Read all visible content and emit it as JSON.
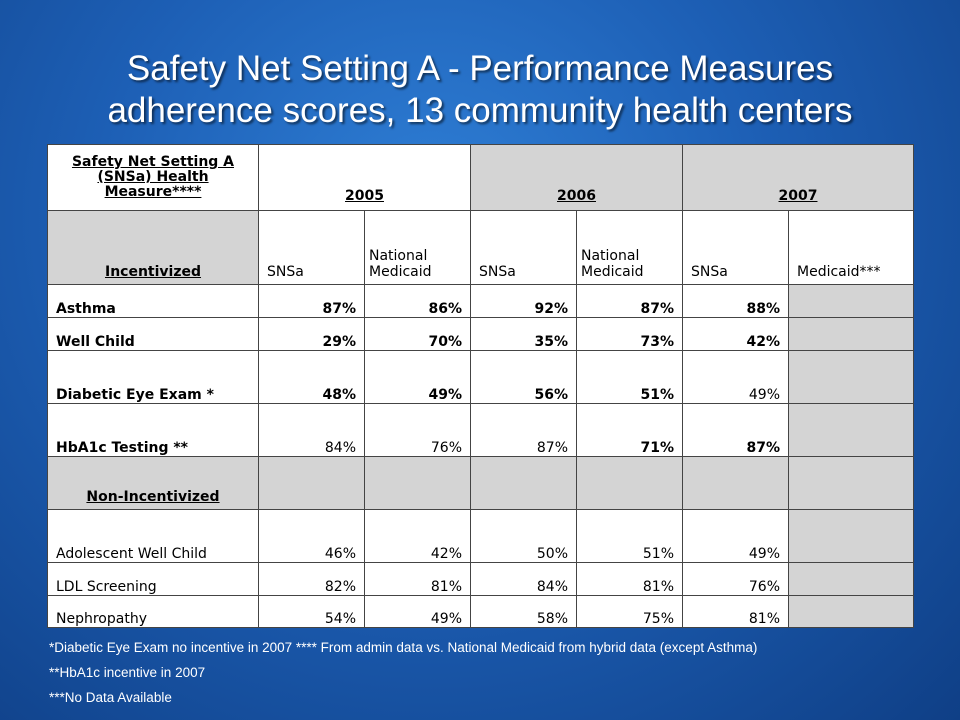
{
  "title": {
    "line1": "Safety Net Setting A - Performance Measures",
    "line2": "adherence scores, 13 community health centers"
  },
  "table": {
    "measure_header": "Safety Net Setting A (SNSa) Health Measure****",
    "years": [
      "2005",
      "2006",
      "2007"
    ],
    "group_incentivized": "Incentivized",
    "group_non_incentivized": "Non-Incentivized",
    "subheaders": [
      "SNSa",
      "National Medicaid",
      "SNSa",
      "National Medicaid",
      "SNSa",
      "Medicaid***"
    ],
    "incentivized_rows": [
      {
        "label": "Asthma",
        "values": [
          "87%",
          "86%",
          "92%",
          "87%",
          "88%",
          ""
        ]
      },
      {
        "label": "Well Child",
        "values": [
          "29%",
          "70%",
          "35%",
          "73%",
          "42%",
          ""
        ]
      },
      {
        "label": "Diabetic Eye Exam *",
        "values": [
          "48%",
          "49%",
          "56%",
          "51%",
          "49%",
          ""
        ]
      },
      {
        "label": "HbA1c Testing **",
        "values": [
          "84%",
          "76%",
          "87%",
          "71%",
          "87%",
          ""
        ]
      }
    ],
    "non_incentivized_rows": [
      {
        "label": "Adolescent Well Child",
        "values": [
          "46%",
          "42%",
          "50%",
          "51%",
          "49%",
          ""
        ]
      },
      {
        "label": "LDL Screening",
        "values": [
          "82%",
          "81%",
          "84%",
          "81%",
          "76%",
          ""
        ]
      },
      {
        "label": "Nephropathy",
        "values": [
          "54%",
          "49%",
          "58%",
          "75%",
          "81%",
          ""
        ]
      }
    ]
  },
  "footnotes": {
    "line1": "*Diabetic Eye Exam no incentive in 2007   **** From admin data vs. National Medicaid from hybrid data (except Asthma)",
    "line2": "**HbA1c incentive in 2007",
    "line3": "***No Data Available"
  },
  "colors": {
    "background": "#1d5fb5",
    "gray_cell": "#d4d4d4"
  }
}
